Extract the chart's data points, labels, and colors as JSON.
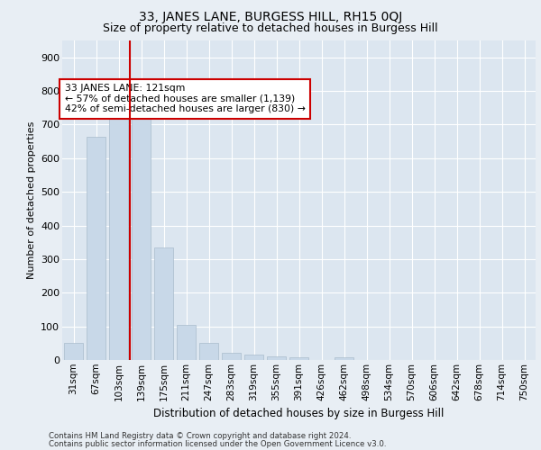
{
  "title": "33, JANES LANE, BURGESS HILL, RH15 0QJ",
  "subtitle": "Size of property relative to detached houses in Burgess Hill",
  "xlabel": "Distribution of detached houses by size in Burgess Hill",
  "ylabel": "Number of detached properties",
  "footer_line1": "Contains HM Land Registry data © Crown copyright and database right 2024.",
  "footer_line2": "Contains public sector information licensed under the Open Government Licence v3.0.",
  "annotation_line1": "33 JANES LANE: 121sqm",
  "annotation_line2": "← 57% of detached houses are smaller (1,139)",
  "annotation_line3": "42% of semi-detached houses are larger (830) →",
  "bar_color": "#c8d8e8",
  "bar_edge_color": "#aabccc",
  "vline_color": "#cc0000",
  "annotation_box_edge_color": "#cc0000",
  "background_color": "#e8eef4",
  "plot_bg_color": "#dce6f0",
  "grid_color": "#ffffff",
  "categories": [
    "31sqm",
    "67sqm",
    "103sqm",
    "139sqm",
    "175sqm",
    "211sqm",
    "247sqm",
    "283sqm",
    "319sqm",
    "355sqm",
    "391sqm",
    "426sqm",
    "462sqm",
    "498sqm",
    "534sqm",
    "570sqm",
    "606sqm",
    "642sqm",
    "678sqm",
    "714sqm",
    "750sqm"
  ],
  "values": [
    50,
    665,
    750,
    750,
    335,
    105,
    50,
    22,
    15,
    10,
    8,
    0,
    7,
    0,
    0,
    0,
    0,
    0,
    0,
    0,
    0
  ],
  "vline_x": 2.5,
  "ylim": [
    0,
    950
  ],
  "yticks": [
    0,
    100,
    200,
    300,
    400,
    500,
    600,
    700,
    800,
    900
  ],
  "title_fontsize": 10,
  "subtitle_fontsize": 9,
  "ylabel_fontsize": 8,
  "xlabel_fontsize": 8.5,
  "tick_fontsize": 7.5,
  "footer_fontsize": 6.2,
  "annotation_fontsize": 7.8
}
